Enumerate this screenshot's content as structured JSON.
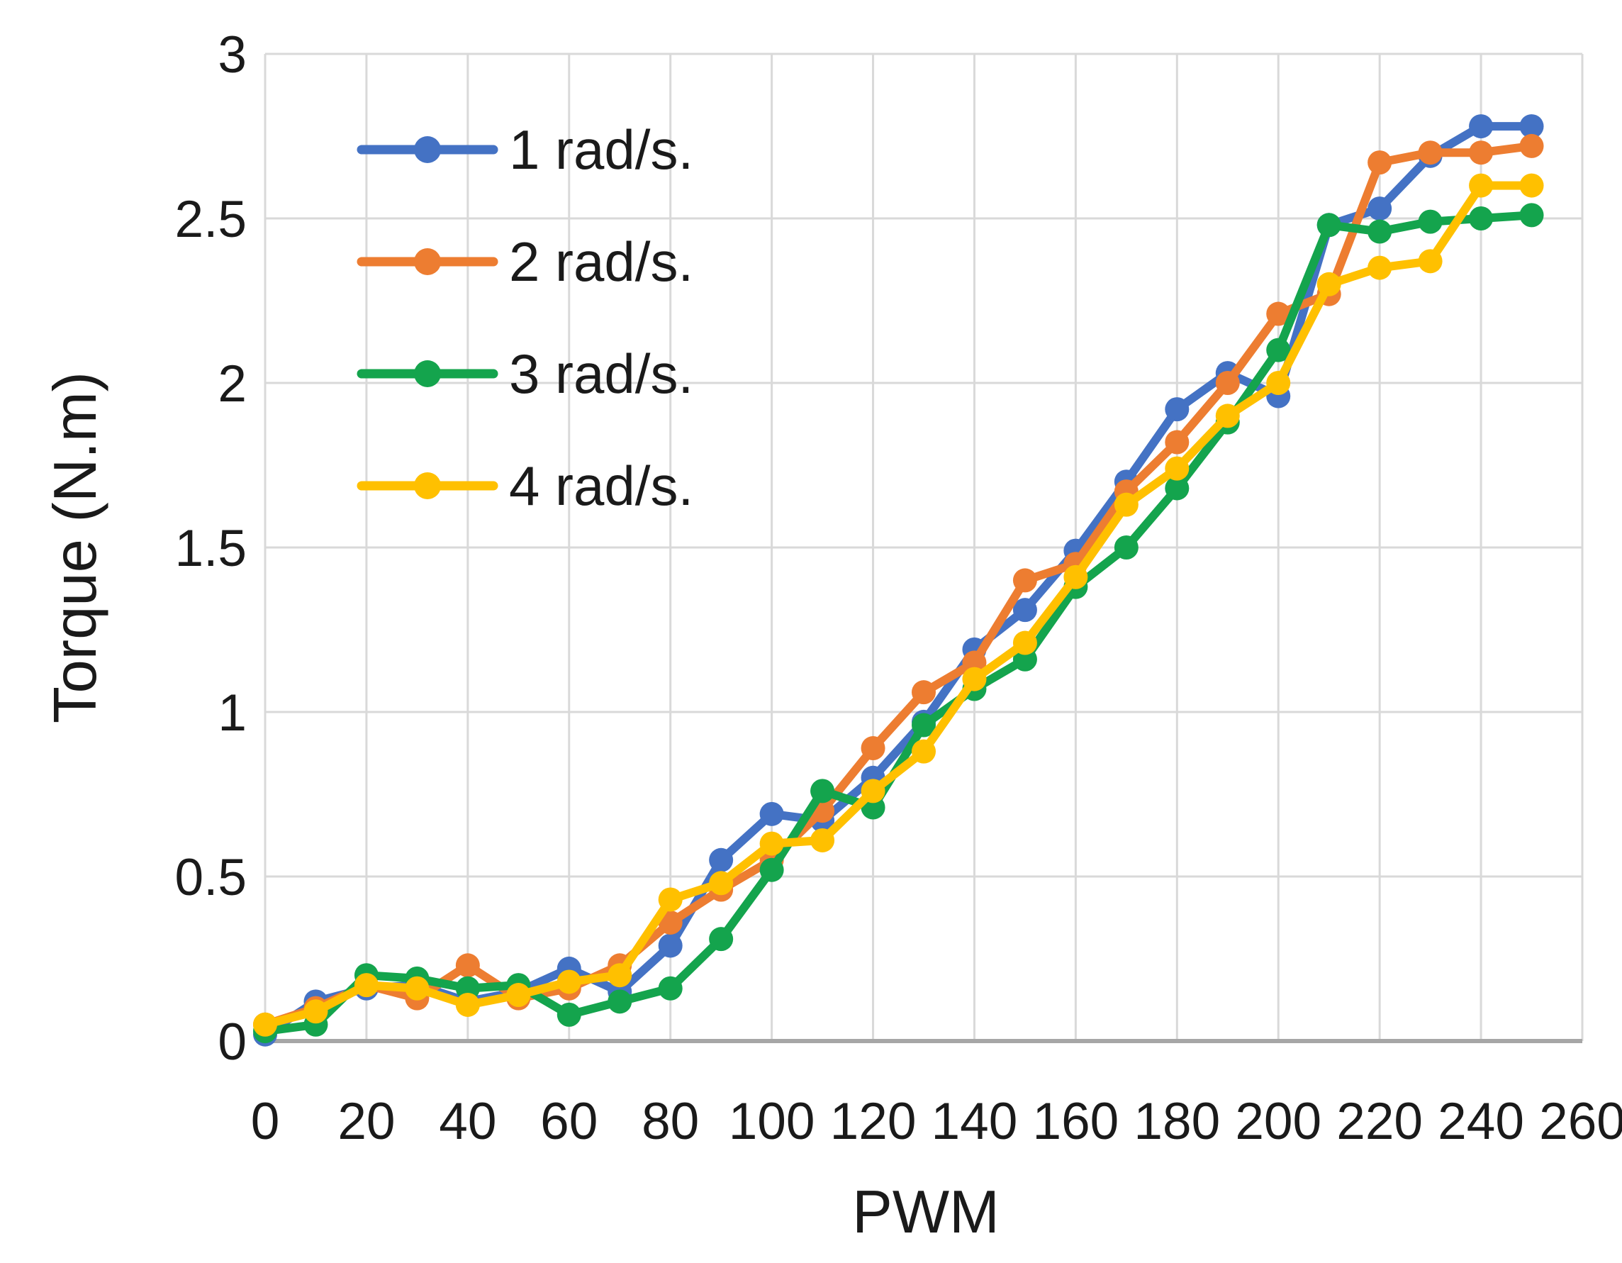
{
  "chart_data": {
    "type": "line",
    "title": "",
    "xlabel": "PWM",
    "ylabel": "Torque (N.m)",
    "xlim": [
      0,
      260
    ],
    "ylim": [
      0,
      3
    ],
    "grid": true,
    "legend_position": "top-left-inside",
    "x_tick_labels": [
      "0",
      "20",
      "40",
      "60",
      "80",
      "100",
      "120",
      "140",
      "160",
      "180",
      "200",
      "220",
      "240",
      "260"
    ],
    "x_tick_values": [
      0,
      20,
      40,
      60,
      80,
      100,
      120,
      140,
      160,
      180,
      200,
      220,
      240,
      260
    ],
    "y_tick_labels": [
      "0",
      "0.5",
      "1",
      "1.5",
      "2",
      "2.5",
      "3"
    ],
    "y_tick_values": [
      0,
      0.5,
      1,
      1.5,
      2,
      2.5,
      3
    ],
    "x": [
      0,
      10,
      20,
      30,
      40,
      50,
      60,
      70,
      80,
      90,
      100,
      110,
      120,
      130,
      140,
      150,
      160,
      170,
      180,
      190,
      200,
      210,
      220,
      230,
      240,
      250
    ],
    "series": [
      {
        "name": "1 rad/s.",
        "color": "#4472C4",
        "values": [
          0.02,
          0.12,
          0.16,
          0.17,
          0.12,
          0.15,
          0.22,
          0.15,
          0.29,
          0.55,
          0.69,
          0.67,
          0.8,
          0.97,
          1.19,
          1.31,
          1.49,
          1.7,
          1.92,
          2.03,
          1.96,
          2.48,
          2.53,
          2.69,
          2.78,
          2.78
        ]
      },
      {
        "name": "2 rad/s.",
        "color": "#ED7D31",
        "values": [
          0.05,
          0.1,
          0.17,
          0.13,
          0.23,
          0.13,
          0.16,
          0.23,
          0.36,
          0.46,
          0.55,
          0.7,
          0.89,
          1.06,
          1.15,
          1.4,
          1.45,
          1.67,
          1.82,
          2.0,
          2.21,
          2.27,
          2.67,
          2.7,
          2.7,
          2.72
        ]
      },
      {
        "name": "3 rad/s.",
        "color": "#14A44D",
        "values": [
          0.03,
          0.05,
          0.2,
          0.19,
          0.16,
          0.17,
          0.08,
          0.12,
          0.16,
          0.31,
          0.52,
          0.76,
          0.71,
          0.96,
          1.07,
          1.16,
          1.38,
          1.5,
          1.68,
          1.88,
          2.1,
          2.48,
          2.46,
          2.49,
          2.5,
          2.51
        ]
      },
      {
        "name": "4 rad/s.",
        "color": "#FFC000",
        "values": [
          0.05,
          0.09,
          0.17,
          0.16,
          0.11,
          0.14,
          0.18,
          0.2,
          0.43,
          0.48,
          0.6,
          0.61,
          0.76,
          0.88,
          1.1,
          1.21,
          1.41,
          1.63,
          1.74,
          1.9,
          2.0,
          2.3,
          2.35,
          2.37,
          2.6,
          2.6
        ]
      }
    ],
    "colors": {
      "background": "#FFFFFF",
      "gridline": "#D9D9D9",
      "axis_line": "#A6A6A6",
      "text": "#1A1A1A"
    }
  }
}
